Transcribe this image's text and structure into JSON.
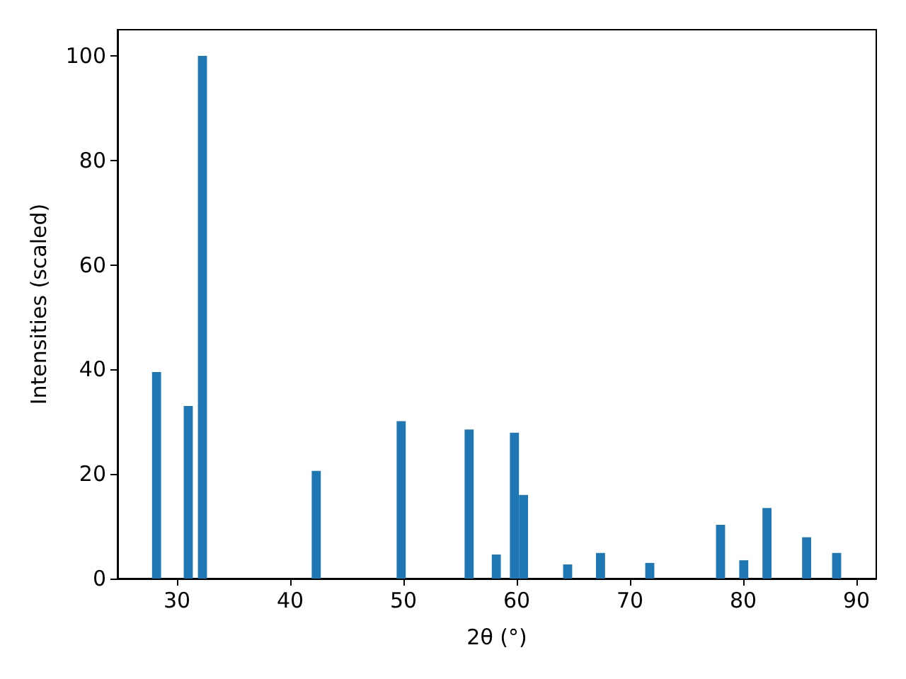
{
  "chart_data": {
    "type": "bar",
    "xlabel": "2θ (°)",
    "ylabel": "Intensities (scaled)",
    "x": [
      28.2,
      31.0,
      32.25,
      42.3,
      49.8,
      55.8,
      58.2,
      59.8,
      60.6,
      64.5,
      67.4,
      71.75,
      78.0,
      80.05,
      82.1,
      85.6,
      88.25
    ],
    "values": [
      39.5,
      33,
      100,
      20.6,
      30.1,
      28.5,
      4.6,
      27.9,
      16,
      2.7,
      4.9,
      3.0,
      10.3,
      3.5,
      13.5,
      7.9,
      4.9
    ],
    "color": "#1f77b4",
    "xlim": [
      24.75,
      91.75
    ],
    "xticks": [
      30,
      40,
      50,
      60,
      70,
      80,
      90
    ],
    "ylim": [
      0,
      105
    ],
    "yticks": [
      0,
      20,
      40,
      60,
      80,
      100
    ],
    "grid": false
  }
}
